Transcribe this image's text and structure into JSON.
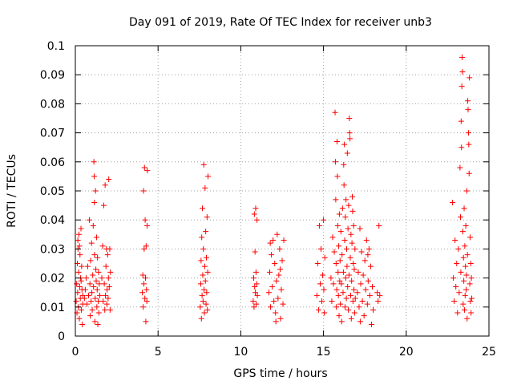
{
  "chart_data": {
    "type": "scatter",
    "title": "Day 091 of 2019, Rate Of TEC Index for receiver unb3",
    "xlabel": "GPS time / hours",
    "ylabel": "ROTI / TECUs",
    "xlim": [
      0,
      25
    ],
    "ylim": [
      0,
      0.1
    ],
    "x_ticks": [
      0,
      5,
      10,
      15,
      20,
      25
    ],
    "x_tick_labels": [
      "0",
      "5",
      "10",
      "15",
      "20",
      "25"
    ],
    "y_ticks": [
      0,
      0.01,
      0.02,
      0.03,
      0.04,
      0.05,
      0.06,
      0.07,
      0.08,
      0.09,
      0.1
    ],
    "y_tick_labels": [
      "0",
      "0.01",
      "0.02",
      "0.03",
      "0.04",
      "0.05",
      "0.06",
      "0.07",
      "0.08",
      "0.09",
      "0.1"
    ],
    "grid": true,
    "marker": "+",
    "marker_color": "#ff0000",
    "points": [
      [
        0.05,
        0.012
      ],
      [
        0.08,
        0.018
      ],
      [
        0.1,
        0.008
      ],
      [
        0.12,
        0.025
      ],
      [
        0.14,
        0.015
      ],
      [
        0.16,
        0.03
      ],
      [
        0.18,
        0.01
      ],
      [
        0.2,
        0.022
      ],
      [
        0.22,
        0.035
      ],
      [
        0.24,
        0.006
      ],
      [
        0.26,
        0.017
      ],
      [
        0.28,
        0.028
      ],
      [
        0.3,
        0.013
      ],
      [
        0.32,
        0.02
      ],
      [
        0.34,
        0.037
      ],
      [
        0.36,
        0.009
      ],
      [
        0.38,
        0.024
      ],
      [
        0.4,
        0.016
      ],
      [
        0.42,
        0.004
      ],
      [
        0.44,
        0.011
      ],
      [
        0.15,
        0.033
      ],
      [
        0.25,
        0.031
      ],
      [
        0.35,
        0.019
      ],
      [
        0.45,
        0.014
      ],
      [
        0.55,
        0.013
      ],
      [
        0.6,
        0.016
      ],
      [
        0.65,
        0.02
      ],
      [
        0.7,
        0.011
      ],
      [
        0.75,
        0.024
      ],
      [
        0.8,
        0.014
      ],
      [
        0.85,
        0.04
      ],
      [
        0.88,
        0.018
      ],
      [
        0.9,
        0.007
      ],
      [
        0.92,
        0.026
      ],
      [
        0.95,
        0.012
      ],
      [
        0.98,
        0.032
      ],
      [
        1.0,
        0.015
      ],
      [
        1.02,
        0.009
      ],
      [
        1.05,
        0.021
      ],
      [
        1.08,
        0.038
      ],
      [
        1.1,
        0.017
      ],
      [
        1.12,
        0.06
      ],
      [
        1.14,
        0.055
      ],
      [
        1.15,
        0.046
      ],
      [
        1.16,
        0.028
      ],
      [
        1.18,
        0.005
      ],
      [
        1.2,
        0.013
      ],
      [
        1.22,
        0.05
      ],
      [
        1.24,
        0.023
      ],
      [
        1.26,
        0.019
      ],
      [
        1.28,
        0.034
      ],
      [
        1.3,
        0.01
      ],
      [
        1.32,
        0.016
      ],
      [
        1.34,
        0.027
      ],
      [
        1.36,
        0.004
      ],
      [
        1.38,
        0.012
      ],
      [
        1.4,
        0.022
      ],
      [
        1.42,
        0.008
      ],
      [
        1.45,
        0.018
      ],
      [
        1.48,
        0.014
      ],
      [
        1.6,
        0.02
      ],
      [
        1.65,
        0.031
      ],
      [
        1.68,
        0.012
      ],
      [
        1.72,
        0.045
      ],
      [
        1.75,
        0.018
      ],
      [
        1.78,
        0.009
      ],
      [
        1.8,
        0.052
      ],
      [
        1.82,
        0.014
      ],
      [
        1.85,
        0.024
      ],
      [
        1.88,
        0.03
      ],
      [
        1.9,
        0.011
      ],
      [
        1.92,
        0.016
      ],
      [
        1.95,
        0.028
      ],
      [
        1.98,
        0.013
      ],
      [
        2.0,
        0.02
      ],
      [
        2.02,
        0.054
      ],
      [
        2.05,
        0.017
      ],
      [
        2.08,
        0.03
      ],
      [
        2.1,
        0.009
      ],
      [
        2.12,
        0.022
      ],
      [
        4.05,
        0.015
      ],
      [
        4.08,
        0.021
      ],
      [
        4.1,
        0.01
      ],
      [
        4.12,
        0.05
      ],
      [
        4.14,
        0.018
      ],
      [
        4.16,
        0.03
      ],
      [
        4.18,
        0.058
      ],
      [
        4.2,
        0.013
      ],
      [
        4.22,
        0.04
      ],
      [
        4.24,
        0.02
      ],
      [
        4.26,
        0.005
      ],
      [
        4.28,
        0.031
      ],
      [
        4.3,
        0.016
      ],
      [
        4.32,
        0.012
      ],
      [
        4.34,
        0.038
      ],
      [
        4.35,
        0.057
      ],
      [
        7.55,
        0.01
      ],
      [
        7.58,
        0.018
      ],
      [
        7.6,
        0.026
      ],
      [
        7.62,
        0.006
      ],
      [
        7.64,
        0.034
      ],
      [
        7.66,
        0.014
      ],
      [
        7.68,
        0.044
      ],
      [
        7.7,
        0.021
      ],
      [
        7.72,
        0.012
      ],
      [
        7.74,
        0.03
      ],
      [
        7.76,
        0.059
      ],
      [
        7.78,
        0.016
      ],
      [
        7.8,
        0.008
      ],
      [
        7.82,
        0.024
      ],
      [
        7.84,
        0.051
      ],
      [
        7.86,
        0.019
      ],
      [
        7.88,
        0.036
      ],
      [
        7.9,
        0.011
      ],
      [
        7.92,
        0.027
      ],
      [
        7.94,
        0.015
      ],
      [
        7.96,
        0.041
      ],
      [
        7.98,
        0.009
      ],
      [
        8.0,
        0.022
      ],
      [
        8.02,
        0.055
      ],
      [
        10.75,
        0.012
      ],
      [
        10.78,
        0.02
      ],
      [
        10.8,
        0.01
      ],
      [
        10.82,
        0.042
      ],
      [
        10.84,
        0.017
      ],
      [
        10.86,
        0.029
      ],
      [
        10.88,
        0.015
      ],
      [
        10.9,
        0.044
      ],
      [
        10.92,
        0.022
      ],
      [
        10.94,
        0.011
      ],
      [
        10.96,
        0.018
      ],
      [
        10.98,
        0.04
      ],
      [
        11.0,
        0.014
      ],
      [
        11.7,
        0.015
      ],
      [
        11.75,
        0.022
      ],
      [
        11.8,
        0.01
      ],
      [
        11.85,
        0.028
      ],
      [
        11.9,
        0.017
      ],
      [
        11.95,
        0.033
      ],
      [
        12.0,
        0.012
      ],
      [
        12.05,
        0.025
      ],
      [
        12.1,
        0.008
      ],
      [
        12.15,
        0.019
      ],
      [
        12.2,
        0.035
      ],
      [
        12.25,
        0.013
      ],
      [
        12.3,
        0.021
      ],
      [
        12.35,
        0.03
      ],
      [
        12.4,
        0.006
      ],
      [
        12.45,
        0.016
      ],
      [
        12.5,
        0.026
      ],
      [
        12.55,
        0.011
      ],
      [
        12.6,
        0.033
      ],
      [
        11.78,
        0.032
      ],
      [
        12.12,
        0.005
      ],
      [
        12.38,
        0.023
      ],
      [
        14.6,
        0.014
      ],
      [
        14.65,
        0.025
      ],
      [
        14.7,
        0.009
      ],
      [
        14.75,
        0.038
      ],
      [
        14.8,
        0.018
      ],
      [
        14.85,
        0.03
      ],
      [
        14.9,
        0.012
      ],
      [
        14.95,
        0.021
      ],
      [
        15.0,
        0.04
      ],
      [
        15.02,
        0.016
      ],
      [
        15.05,
        0.008
      ],
      [
        15.08,
        0.027
      ],
      [
        15.45,
        0.02
      ],
      [
        15.5,
        0.012
      ],
      [
        15.55,
        0.034
      ],
      [
        15.6,
        0.018
      ],
      [
        15.65,
        0.029
      ],
      [
        15.7,
        0.077
      ],
      [
        15.72,
        0.06
      ],
      [
        15.74,
        0.047
      ],
      [
        15.76,
        0.025
      ],
      [
        15.78,
        0.01
      ],
      [
        15.8,
        0.016
      ],
      [
        15.82,
        0.067
      ],
      [
        15.84,
        0.055
      ],
      [
        15.86,
        0.038
      ],
      [
        15.88,
        0.022
      ],
      [
        15.9,
        0.014
      ],
      [
        15.92,
        0.031
      ],
      [
        15.94,
        0.007
      ],
      [
        15.96,
        0.042
      ],
      [
        15.98,
        0.019
      ],
      [
        16.0,
        0.026
      ],
      [
        16.02,
        0.011
      ],
      [
        16.05,
        0.036
      ],
      [
        16.08,
        0.018
      ],
      [
        16.1,
        0.005
      ],
      [
        16.12,
        0.028
      ],
      [
        16.15,
        0.044
      ],
      [
        16.18,
        0.015
      ],
      [
        16.2,
        0.022
      ],
      [
        16.22,
        0.059
      ],
      [
        16.24,
        0.052
      ],
      [
        16.26,
        0.066
      ],
      [
        16.28,
        0.033
      ],
      [
        16.3,
        0.01
      ],
      [
        16.32,
        0.041
      ],
      [
        16.34,
        0.02
      ],
      [
        16.36,
        0.047
      ],
      [
        16.38,
        0.013
      ],
      [
        16.4,
        0.03
      ],
      [
        16.42,
        0.024
      ],
      [
        16.44,
        0.063
      ],
      [
        16.46,
        0.017
      ],
      [
        16.48,
        0.037
      ],
      [
        16.5,
        0.009
      ],
      [
        16.52,
        0.045
      ],
      [
        16.54,
        0.021
      ],
      [
        16.56,
        0.075
      ],
      [
        16.58,
        0.07
      ],
      [
        16.6,
        0.068
      ],
      [
        16.62,
        0.027
      ],
      [
        16.64,
        0.014
      ],
      [
        16.66,
        0.035
      ],
      [
        16.68,
        0.006
      ],
      [
        16.7,
        0.019
      ],
      [
        16.72,
        0.032
      ],
      [
        16.74,
        0.048
      ],
      [
        16.76,
        0.043
      ],
      [
        16.78,
        0.012
      ],
      [
        16.8,
        0.025
      ],
      [
        16.82,
        0.038
      ],
      [
        16.84,
        0.016
      ],
      [
        16.86,
        0.023
      ],
      [
        16.88,
        0.008
      ],
      [
        16.9,
        0.03
      ],
      [
        16.92,
        0.013
      ],
      [
        17.05,
        0.015
      ],
      [
        17.1,
        0.022
      ],
      [
        17.15,
        0.01
      ],
      [
        17.2,
        0.037
      ],
      [
        17.25,
        0.018
      ],
      [
        17.3,
        0.029
      ],
      [
        17.35,
        0.012
      ],
      [
        17.4,
        0.021
      ],
      [
        17.45,
        0.007
      ],
      [
        17.5,
        0.026
      ],
      [
        17.55,
        0.016
      ],
      [
        17.6,
        0.033
      ],
      [
        17.65,
        0.011
      ],
      [
        17.7,
        0.019
      ],
      [
        17.75,
        0.03
      ],
      [
        17.8,
        0.014
      ],
      [
        17.85,
        0.024
      ],
      [
        17.9,
        0.004
      ],
      [
        17.95,
        0.017
      ],
      [
        18.0,
        0.009
      ],
      [
        17.22,
        0.005
      ],
      [
        17.68,
        0.028
      ],
      [
        18.25,
        0.015
      ],
      [
        18.3,
        0.012
      ],
      [
        18.35,
        0.038
      ],
      [
        18.4,
        0.014
      ],
      [
        22.8,
        0.046
      ],
      [
        22.85,
        0.02
      ],
      [
        22.9,
        0.012
      ],
      [
        22.95,
        0.033
      ],
      [
        23.0,
        0.017
      ],
      [
        23.05,
        0.025
      ],
      [
        23.1,
        0.008
      ],
      [
        23.15,
        0.03
      ],
      [
        23.2,
        0.015
      ],
      [
        23.25,
        0.058
      ],
      [
        23.28,
        0.041
      ],
      [
        23.3,
        0.022
      ],
      [
        23.32,
        0.074
      ],
      [
        23.34,
        0.065
      ],
      [
        23.36,
        0.086
      ],
      [
        23.38,
        0.096
      ],
      [
        23.4,
        0.091
      ],
      [
        23.42,
        0.036
      ],
      [
        23.44,
        0.011
      ],
      [
        23.46,
        0.027
      ],
      [
        23.48,
        0.019
      ],
      [
        23.5,
        0.044
      ],
      [
        23.52,
        0.009
      ],
      [
        23.54,
        0.031
      ],
      [
        23.56,
        0.014
      ],
      [
        23.58,
        0.024
      ],
      [
        23.6,
        0.038
      ],
      [
        23.62,
        0.016
      ],
      [
        23.64,
        0.021
      ],
      [
        23.66,
        0.05
      ],
      [
        23.68,
        0.006
      ],
      [
        23.7,
        0.028
      ],
      [
        23.72,
        0.081
      ],
      [
        23.74,
        0.078
      ],
      [
        23.76,
        0.07
      ],
      [
        23.78,
        0.066
      ],
      [
        23.8,
        0.056
      ],
      [
        23.82,
        0.089
      ],
      [
        23.84,
        0.018
      ],
      [
        23.86,
        0.034
      ],
      [
        23.88,
        0.012
      ],
      [
        23.9,
        0.025
      ],
      [
        23.92,
        0.008
      ],
      [
        23.94,
        0.02
      ],
      [
        23.96,
        0.013
      ]
    ]
  }
}
